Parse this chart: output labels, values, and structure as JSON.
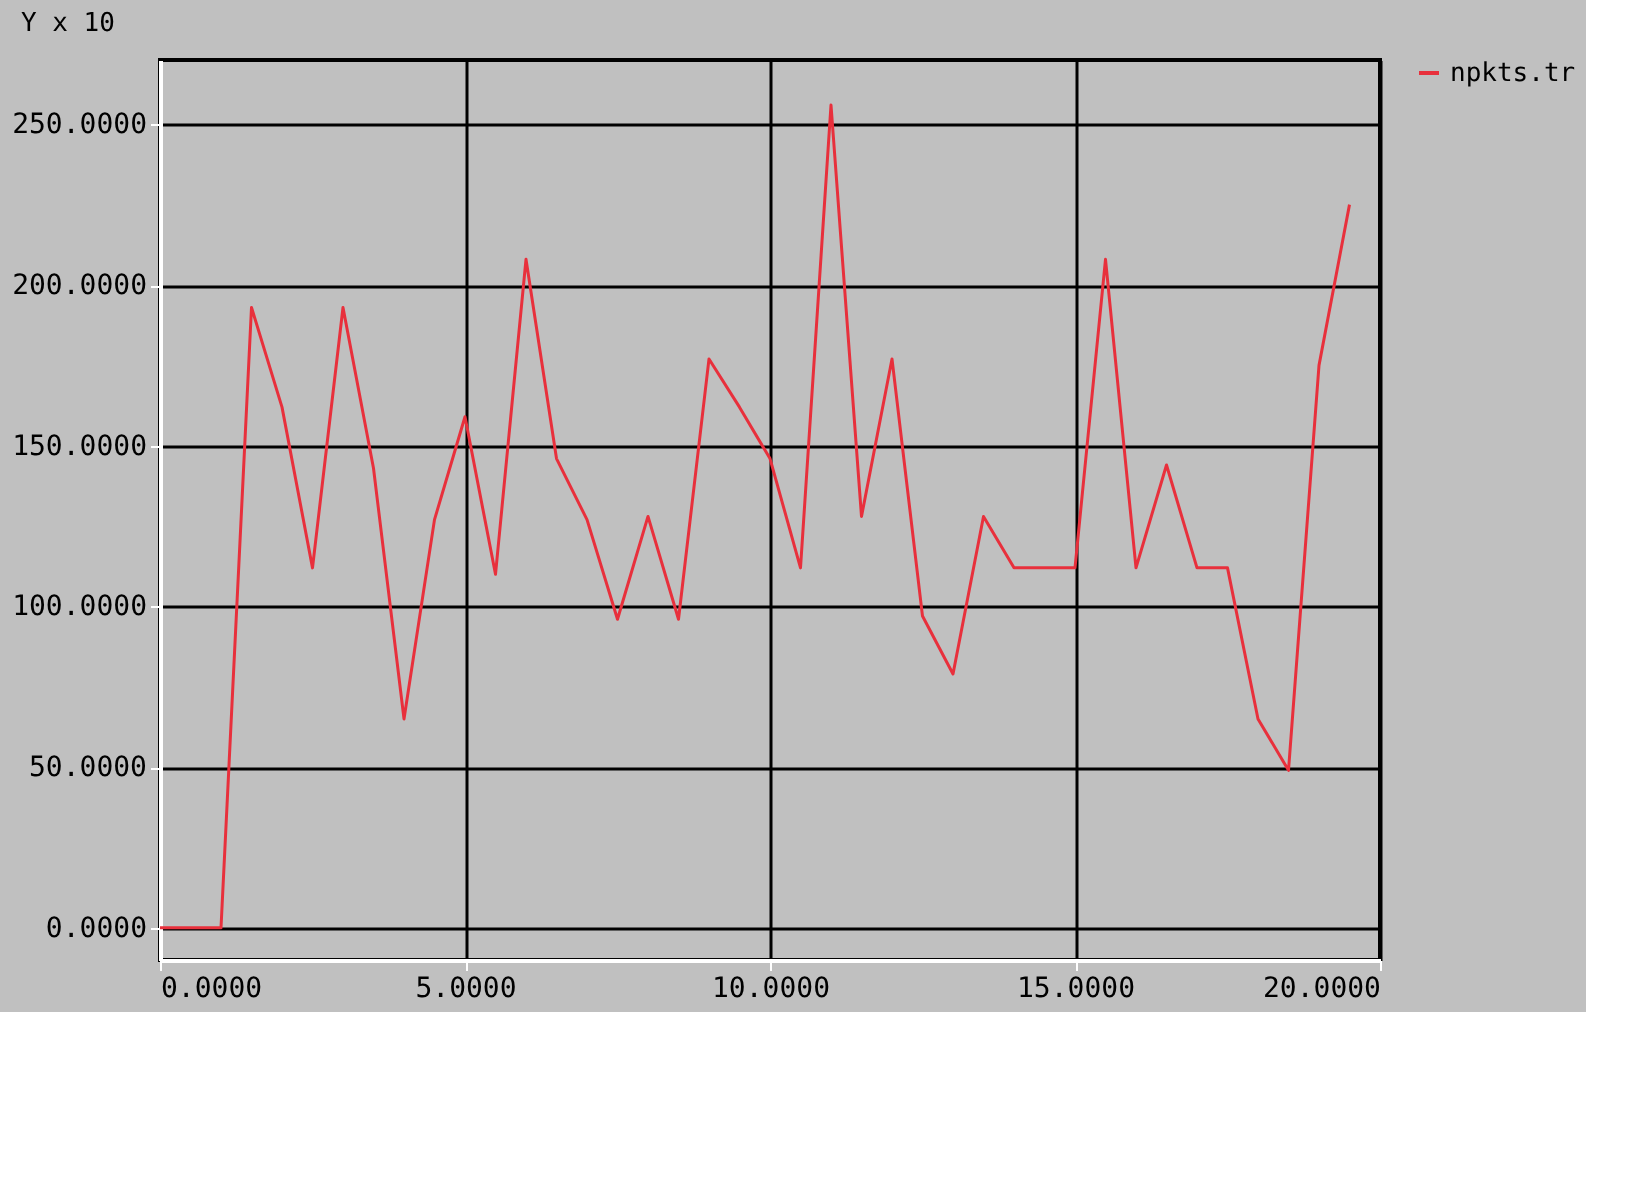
{
  "chart_data": {
    "type": "line",
    "ylabel": "Y x 10",
    "x": [
      0,
      1,
      1.5,
      2,
      2.5,
      3,
      3.5,
      4,
      4.5,
      5,
      5.5,
      6,
      6.5,
      7,
      7.5,
      8,
      8.5,
      9,
      9.5,
      10,
      10.5,
      11,
      11.5,
      12,
      12.5,
      13,
      13.5,
      14,
      15,
      15.5,
      16,
      16.5,
      17,
      17.5,
      18,
      18.5,
      19,
      19.5
    ],
    "series": [
      {
        "name": "npkts.tr",
        "color": "#e8303c",
        "values": [
          0,
          0,
          193,
          162,
          112,
          193,
          143,
          65,
          127,
          159,
          110,
          208,
          146,
          127,
          96,
          128,
          96,
          177,
          162,
          146,
          112,
          256,
          128,
          177,
          97,
          79,
          128,
          112,
          112,
          208,
          112,
          144,
          112,
          112,
          65,
          49,
          175,
          225
        ]
      }
    ],
    "xlim": [
      0,
      20
    ],
    "ylim": [
      -10,
      270
    ],
    "xticks": [
      {
        "value": 0,
        "label": "0.0000"
      },
      {
        "value": 5,
        "label": "5.0000"
      },
      {
        "value": 10,
        "label": "10.0000"
      },
      {
        "value": 15,
        "label": "15.0000"
      },
      {
        "value": 20,
        "label": "20.0000"
      }
    ],
    "yticks": [
      {
        "value": 0,
        "label": "0.0000"
      },
      {
        "value": 50,
        "label": "50.0000"
      },
      {
        "value": 100,
        "label": "100.0000"
      },
      {
        "value": 150,
        "label": "150.0000"
      },
      {
        "value": 200,
        "label": "200.0000"
      },
      {
        "value": 250,
        "label": "250.0000"
      }
    ],
    "grid": true,
    "legend": "top right",
    "marker": "none",
    "line_style": "solid"
  }
}
